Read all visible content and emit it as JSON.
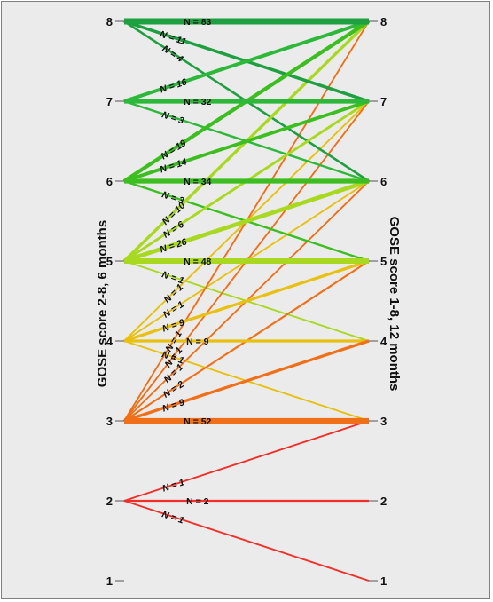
{
  "chart_data": {
    "type": "parallel-transition",
    "left_axis": {
      "label": "GOSE score 2-8, 6 months",
      "ticks": [
        "1",
        "2",
        "3",
        "4",
        "5",
        "6",
        "7",
        "8"
      ]
    },
    "right_axis": {
      "label": "GOSE score 1-8, 12 months",
      "ticks": [
        "1",
        "2",
        "3",
        "4",
        "5",
        "6",
        "7",
        "8"
      ]
    },
    "colors": {
      "8": "#1fa040",
      "7": "#2db83a",
      "6": "#3cbe20",
      "5": "#a8d820",
      "4": "#e8c010",
      "3": "#f0701a",
      "2": "#f03028"
    },
    "links": [
      {
        "from": 8,
        "to": 8,
        "n": 83,
        "label": "N = 83"
      },
      {
        "from": 8,
        "to": 7,
        "n": 11,
        "label": "N = 11"
      },
      {
        "from": 8,
        "to": 6,
        "n": 4,
        "label": "N = 4"
      },
      {
        "from": 7,
        "to": 8,
        "n": 16,
        "label": "N = 16"
      },
      {
        "from": 7,
        "to": 7,
        "n": 32,
        "label": "N = 32"
      },
      {
        "from": 7,
        "to": 6,
        "n": 3,
        "label": "N = 3"
      },
      {
        "from": 6,
        "to": 8,
        "n": 19,
        "label": "N = 19"
      },
      {
        "from": 6,
        "to": 7,
        "n": 14,
        "label": "N = 14"
      },
      {
        "from": 6,
        "to": 6,
        "n": 34,
        "label": "N = 34"
      },
      {
        "from": 6,
        "to": 5,
        "n": 3,
        "label": "N = 3"
      },
      {
        "from": 5,
        "to": 8,
        "n": 10,
        "label": "N = 10"
      },
      {
        "from": 5,
        "to": 7,
        "n": 6,
        "label": "N = 6"
      },
      {
        "from": 5,
        "to": 6,
        "n": 26,
        "label": "N = 26"
      },
      {
        "from": 5,
        "to": 5,
        "n": 48,
        "label": "N = 48"
      },
      {
        "from": 5,
        "to": 4,
        "n": 1,
        "label": "N = 1"
      },
      {
        "from": 4,
        "to": 7,
        "n": 1,
        "label": "N = 1"
      },
      {
        "from": 4,
        "to": 6,
        "n": 1,
        "label": "N = 1"
      },
      {
        "from": 4,
        "to": 5,
        "n": 9,
        "label": "N = 9"
      },
      {
        "from": 4,
        "to": 4,
        "n": 9,
        "label": "N = 9"
      },
      {
        "from": 4,
        "to": 3,
        "n": 1,
        "label": "N = 1"
      },
      {
        "from": 3,
        "to": 8,
        "n": 1,
        "label": "N = 1"
      },
      {
        "from": 3,
        "to": 7,
        "n": 1,
        "label": "N = 1"
      },
      {
        "from": 3,
        "to": 6,
        "n": 1,
        "label": "N = 1"
      },
      {
        "from": 3,
        "to": 5,
        "n": 2,
        "label": "N = 2"
      },
      {
        "from": 3,
        "to": 4,
        "n": 9,
        "label": "N = 9"
      },
      {
        "from": 3,
        "to": 3,
        "n": 52,
        "label": "N = 52"
      },
      {
        "from": 2,
        "to": 3,
        "n": 1,
        "label": "N = 1"
      },
      {
        "from": 2,
        "to": 2,
        "n": 2,
        "label": "N = 2"
      },
      {
        "from": 2,
        "to": 1,
        "n": 1,
        "label": "N = 1"
      }
    ]
  }
}
